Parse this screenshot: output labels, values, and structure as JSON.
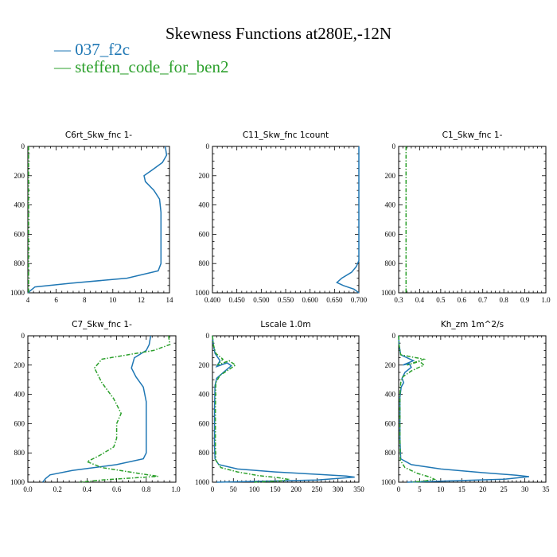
{
  "figure": {
    "title": "Skewness Functions at280E,-12N",
    "legend": [
      {
        "name": "— 037_f2c",
        "color": "#1f77b4"
      },
      {
        "name": "— steffen_code_for_ben2",
        "color": "#2ca02c"
      }
    ]
  },
  "chart_data": [
    {
      "type": "line",
      "title": "C6rt_Skw_fnc   1-",
      "xlim": [
        4,
        14
      ],
      "ylim": [
        1000,
        0
      ],
      "xticks": [
        "4",
        "6",
        "8",
        "10",
        "12",
        "14"
      ],
      "yticks": [
        "0",
        "200",
        "400",
        "600",
        "800",
        "1000"
      ],
      "series": [
        {
          "name": "037_f2c",
          "color": "#1f77b4",
          "x": [
            13.7,
            13.8,
            13.5,
            12.8,
            12.2,
            12.3,
            12.9,
            13.3,
            13.4,
            13.4,
            13.4,
            13.2,
            11.0,
            7.0,
            4.5,
            4.0
          ],
          "y": [
            0,
            60,
            110,
            160,
            200,
            240,
            300,
            360,
            450,
            600,
            800,
            850,
            900,
            935,
            960,
            1000
          ]
        },
        {
          "name": "steffen_code_for_ben2",
          "color": "#2ca02c",
          "x": [
            4.05,
            4.05,
            4.05,
            4.05
          ],
          "y": [
            0,
            300,
            700,
            1000
          ]
        }
      ]
    },
    {
      "type": "line",
      "title": "C11_Skw_fnc   1count",
      "xlim": [
        0.4,
        0.7
      ],
      "ylim": [
        1000,
        0
      ],
      "xticks": [
        "0.400",
        "0.450",
        "0.500",
        "0.550",
        "0.600",
        "0.650",
        "0.700"
      ],
      "yticks": [
        "0",
        "200",
        "400",
        "600",
        "800",
        "1000"
      ],
      "series": [
        {
          "name": "037_f2c",
          "color": "#1f77b4",
          "x": [
            0.7,
            0.7,
            0.695,
            0.685,
            0.665,
            0.655,
            0.668,
            0.69,
            0.7
          ],
          "y": [
            0,
            780,
            820,
            860,
            900,
            930,
            950,
            975,
            1000
          ]
        },
        {
          "name": "steffen_code_for_ben2",
          "color": "#2ca02c",
          "x": [],
          "y": []
        }
      ]
    },
    {
      "type": "line",
      "title": "C1_Skw_fnc   1-",
      "xlim": [
        0.3,
        1.0
      ],
      "ylim": [
        1000,
        0
      ],
      "xticks": [
        "0.3",
        "0.4",
        "0.5",
        "0.6",
        "0.7",
        "0.8",
        "0.9",
        "1.0"
      ],
      "yticks": [
        "0",
        "200",
        "400",
        "600",
        "800",
        "1000"
      ],
      "series": [
        {
          "name": "037_f2c",
          "color": "#1f77b4",
          "x": [],
          "y": []
        },
        {
          "name": "steffen_code_for_ben2",
          "color": "#2ca02c",
          "x": [
            0.335,
            0.335,
            0.335
          ],
          "y": [
            0,
            500,
            1000
          ]
        }
      ]
    },
    {
      "type": "line",
      "title": "C7_Skw_fnc   1-",
      "xlim": [
        0.0,
        1.0
      ],
      "ylim": [
        1000,
        0
      ],
      "xticks": [
        "0.0",
        "0.2",
        "0.4",
        "0.6",
        "0.8",
        "1.0"
      ],
      "yticks": [
        "0",
        "200",
        "400",
        "600",
        "800",
        "1000"
      ],
      "series": [
        {
          "name": "037_f2c",
          "color": "#1f77b4",
          "x": [
            0.83,
            0.82,
            0.8,
            0.72,
            0.7,
            0.73,
            0.78,
            0.8,
            0.8,
            0.8,
            0.78,
            0.6,
            0.3,
            0.15,
            0.12,
            0.1
          ],
          "y": [
            0,
            60,
            100,
            150,
            220,
            280,
            350,
            450,
            600,
            800,
            840,
            880,
            920,
            950,
            975,
            1000
          ]
        },
        {
          "name": "steffen_code_for_ben2",
          "color": "#2ca02c",
          "x": [
            0.95,
            0.96,
            0.85,
            0.5,
            0.45,
            0.5,
            0.58,
            0.63,
            0.6,
            0.6,
            0.58,
            0.48,
            0.4,
            0.5,
            0.75,
            0.88,
            0.5,
            0.35
          ],
          "y": [
            0,
            60,
            100,
            160,
            220,
            320,
            430,
            530,
            600,
            700,
            760,
            820,
            860,
            900,
            940,
            960,
            985,
            1000
          ]
        }
      ]
    },
    {
      "type": "line",
      "title": "Lscale   1.0m",
      "xlim": [
        0,
        350
      ],
      "ylim": [
        1000,
        0
      ],
      "xticks": [
        "0",
        "50",
        "100",
        "150",
        "200",
        "250",
        "300",
        "350"
      ],
      "yticks": [
        "0",
        "200",
        "400",
        "600",
        "800",
        "1000"
      ],
      "series": [
        {
          "name": "037_f2c",
          "color": "#1f77b4",
          "x": [
            0,
            2,
            6,
            18,
            10,
            35,
            45,
            30,
            10,
            6,
            5,
            5,
            6,
            15,
            60,
            150,
            260,
            320,
            340,
            250,
            10
          ],
          "y": [
            0,
            60,
            120,
            170,
            210,
            185,
            205,
            240,
            290,
            340,
            500,
            750,
            840,
            880,
            910,
            930,
            948,
            958,
            965,
            985,
            1000
          ]
        },
        {
          "name": "steffen_code_for_ben2",
          "color": "#2ca02c",
          "x": [
            0,
            2,
            8,
            25,
            12,
            40,
            55,
            40,
            18,
            8,
            7,
            7,
            8,
            20,
            60,
            110,
            160,
            180,
            170,
            100
          ],
          "y": [
            0,
            60,
            120,
            160,
            200,
            170,
            200,
            230,
            270,
            320,
            500,
            750,
            850,
            900,
            930,
            955,
            970,
            980,
            990,
            1000
          ]
        }
      ]
    },
    {
      "type": "line",
      "title": "Kh_zm   1m^2/s",
      "xlim": [
        0,
        35
      ],
      "ylim": [
        1000,
        0
      ],
      "xticks": [
        "0",
        "5",
        "10",
        "15",
        "20",
        "25",
        "30",
        "35"
      ],
      "yticks": [
        "0",
        "200",
        "400",
        "600",
        "800",
        "1000"
      ],
      "series": [
        {
          "name": "037_f2c",
          "color": "#1f77b4",
          "x": [
            0,
            0.1,
            0.5,
            3.5,
            1.0,
            2.5,
            3.0,
            1.5,
            0.8,
            1.2,
            0.6,
            0.3,
            0.3,
            0.5,
            3,
            10,
            20,
            28,
            31,
            25,
            2
          ],
          "y": [
            0,
            60,
            130,
            170,
            200,
            190,
            215,
            250,
            290,
            320,
            350,
            420,
            700,
            840,
            880,
            910,
            935,
            952,
            962,
            980,
            1000
          ]
        },
        {
          "name": "steffen_code_for_ben2",
          "color": "#2ca02c",
          "x": [
            0,
            0.1,
            0.5,
            6.0,
            2.0,
            5.0,
            6.0,
            3.0,
            1.0,
            0.5,
            0.3,
            0.3,
            0.4,
            1.5,
            4.5,
            7.5,
            8.5,
            6.5,
            3.0
          ],
          "y": [
            0,
            60,
            130,
            160,
            200,
            175,
            200,
            240,
            280,
            320,
            400,
            700,
            850,
            900,
            940,
            965,
            980,
            990,
            1000
          ]
        }
      ]
    }
  ]
}
